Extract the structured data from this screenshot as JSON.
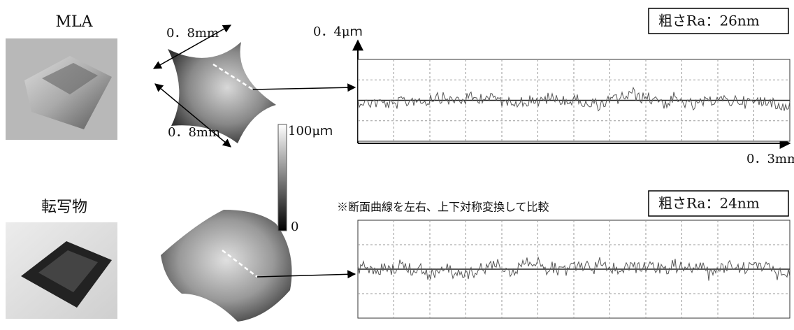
{
  "figure": {
    "note": "※断面曲線を左右、上下対称変換して比較",
    "colorbar": {
      "max": "100μｍ",
      "min": "0"
    },
    "rows": [
      {
        "label": "MLA",
        "dim_a": "0．8mm",
        "dim_b": "0．8mm",
        "y_label": "0．4μｍ",
        "x_label": "0．3mm",
        "roughness": "粗さRa：26nm"
      },
      {
        "label": "転写物",
        "roughness": "粗さRa：24nm"
      }
    ]
  }
}
